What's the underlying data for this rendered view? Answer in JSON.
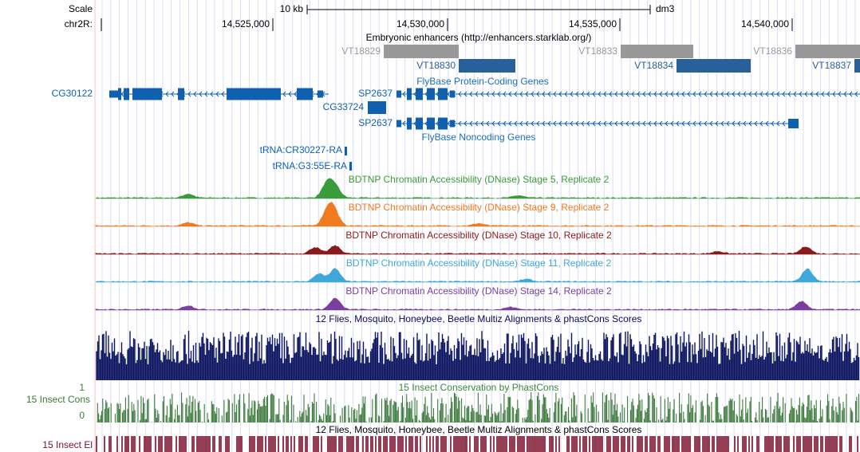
{
  "ruler": {
    "scale_label": "Scale",
    "scale_bar": "10 kb",
    "assembly": "dm3",
    "chrom_label": "chr2R:",
    "positions": [
      "14,525,000",
      "14,530,000",
      "14,535,000",
      "14,540,000"
    ]
  },
  "enhancers": {
    "title": "Embryonic enhancers (http://enhancers.starklab.org/)",
    "items": [
      "VT18829",
      "VT18830",
      "VT18833",
      "VT18834",
      "VT18836",
      "VT18837"
    ]
  },
  "genes": {
    "title": "FlyBase Protein-Coding Genes",
    "items": [
      "CG30122",
      "SP2637",
      "CG33724",
      "SP2637"
    ]
  },
  "noncoding": {
    "title": "FlyBase Noncoding Genes",
    "items": [
      "tRNA:CR30227-RA",
      "tRNA:G3:55E-RA"
    ]
  },
  "dnase": [
    "BDTNP Chromatin Accessibility (DNase) Stage 5, Replicate 2",
    "BDTNP Chromatin Accessibility (DNase) Stage 9, Replicate 2",
    "BDTNP Chromatin Accessibility (DNase) Stage 10, Replicate 2",
    "BDTNP Chromatin Accessibility (DNase) Stage 11, Replicate 2",
    "BDTNP Chromatin Accessibility (DNase) Stage 14, Replicate 2"
  ],
  "multiz": {
    "title": "12 Flies, Mosquito, Honeybee, Beetle Multiz Alignments & phastCons Scores"
  },
  "cons": {
    "title": "15 Insect Conservation by PhastCons",
    "side_label": "15 Insect Cons",
    "ymax": "1",
    "ymin": "0"
  },
  "elements": {
    "title": "12 Flies, Mosquito, Honeybee, Beetle Multiz Alignments & phastCons Scores",
    "side_label": "15 Insect El"
  }
}
